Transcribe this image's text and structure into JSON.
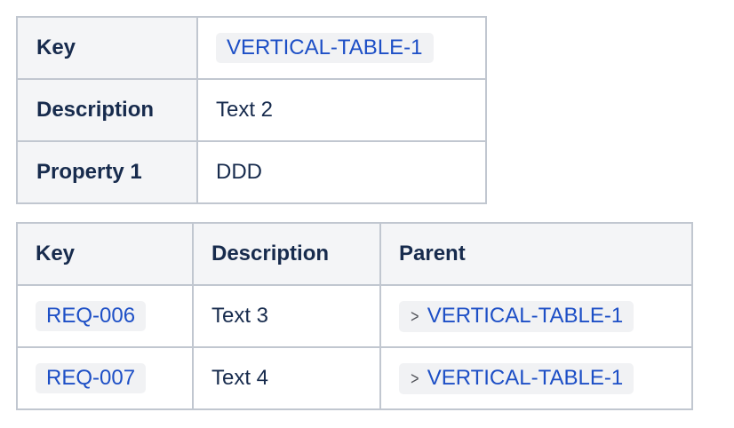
{
  "vertical_table": {
    "rows": [
      {
        "label": "Key",
        "value": "VERTICAL-TABLE-1"
      },
      {
        "label": "Description",
        "value": "Text 2"
      },
      {
        "label": "Property 1",
        "value": "DDD"
      }
    ]
  },
  "horizontal_table": {
    "headers": [
      "Key",
      "Description",
      "Parent"
    ],
    "rows": [
      {
        "key": "REQ-006",
        "description": "Text 3",
        "parent": "VERTICAL-TABLE-1"
      },
      {
        "key": "REQ-007",
        "description": "Text 4",
        "parent": "VERTICAL-TABLE-1"
      }
    ]
  },
  "icons": {
    "parent_link": "chevron-right-icon"
  },
  "colors": {
    "link": "#1d4fc6",
    "text": "#172b4d",
    "header_bg": "#f4f5f7",
    "border": "#c1c7d0",
    "chip_bg": "#f1f2f4"
  }
}
